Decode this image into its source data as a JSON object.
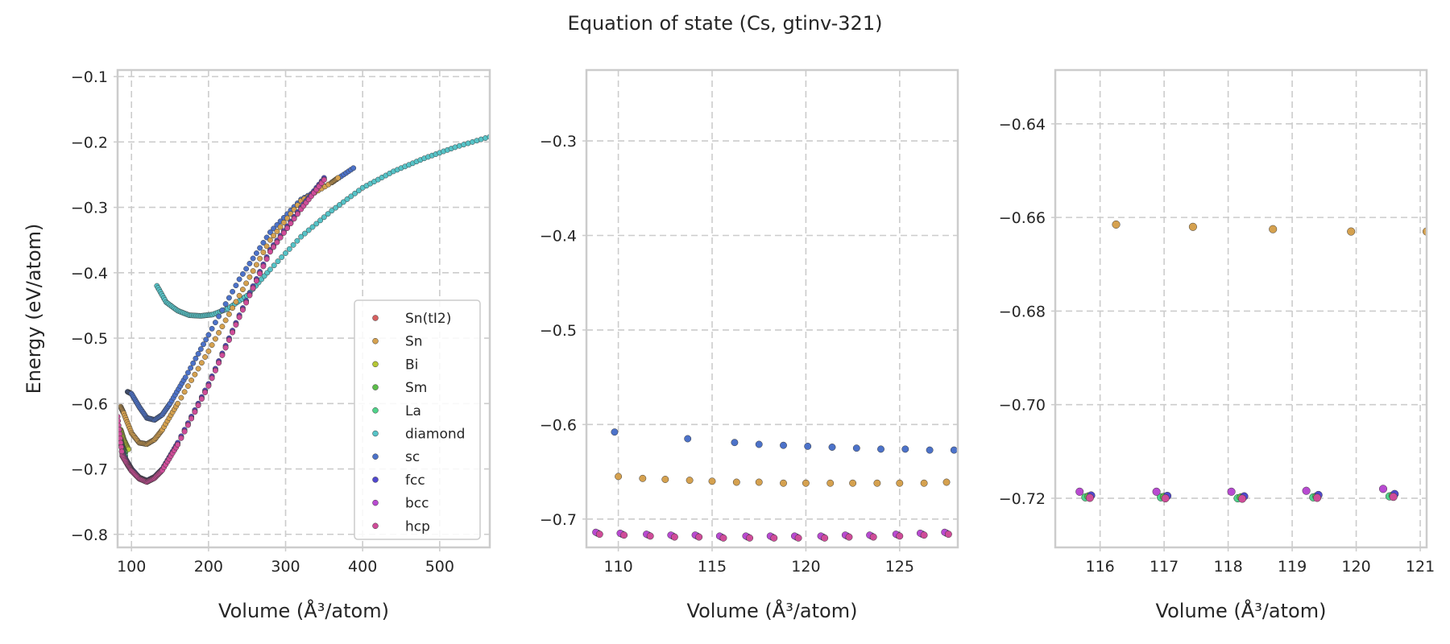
{
  "title": "Equation of state (Cs, gtinv-321)",
  "colors": {
    "Sn(tI2)": "#d65f5f",
    "Sn": "#d5a14f",
    "Bi": "#b5c735",
    "Sm": "#5cbd4a",
    "La": "#4fd38a",
    "diamond": "#56c3c7",
    "sc": "#4c72c9",
    "fcc": "#5148cf",
    "bcc": "#b84ad1",
    "hcp": "#cf4c99"
  },
  "chart_data": [
    {
      "type": "scatter",
      "xlabel": "Volume (Å³/atom)",
      "ylabel": "Energy (eV/atom)",
      "xlim": [
        82,
        565
      ],
      "ylim": [
        -0.82,
        -0.09
      ],
      "xticks": [
        100,
        200,
        300,
        400,
        500
      ],
      "xtick_labels": [
        "100",
        "200",
        "300",
        "400",
        "500"
      ],
      "yticks": [
        -0.8,
        -0.7,
        -0.6,
        -0.5,
        -0.4,
        -0.3,
        -0.2,
        -0.1
      ],
      "ytick_labels": [
        "−0.8",
        "−0.7",
        "−0.6",
        "−0.5",
        "−0.4",
        "−0.3",
        "−0.2",
        "−0.1"
      ],
      "grid": true,
      "legend": {
        "placement": "lower-right",
        "entries": [
          "Sn(tI2)",
          "Sn",
          "Bi",
          "Sm",
          "La",
          "diamond",
          "sc",
          "fcc",
          "bcc",
          "hcp"
        ]
      },
      "series": [
        {
          "name": "diamond",
          "x": [
            133,
            145,
            160,
            175,
            190,
            205,
            225,
            250,
            280,
            320,
            360,
            400,
            440,
            480,
            520,
            565
          ],
          "y": [
            -0.42,
            -0.445,
            -0.458,
            -0.465,
            -0.466,
            -0.464,
            -0.455,
            -0.435,
            -0.395,
            -0.345,
            -0.305,
            -0.27,
            -0.245,
            -0.225,
            -0.208,
            -0.192
          ]
        },
        {
          "name": "sc",
          "x": [
            95,
            100,
            110,
            120,
            130,
            140,
            150,
            170,
            200,
            240,
            280,
            320,
            360,
            388
          ],
          "y": [
            -0.582,
            -0.585,
            -0.605,
            -0.622,
            -0.625,
            -0.617,
            -0.6,
            -0.56,
            -0.495,
            -0.41,
            -0.338,
            -0.288,
            -0.262,
            -0.24
          ]
        },
        {
          "name": "Sn",
          "x": [
            86,
            90,
            100,
            110,
            120,
            130,
            140,
            160,
            200,
            240,
            280,
            320,
            360,
            368
          ],
          "y": [
            -0.605,
            -0.615,
            -0.645,
            -0.66,
            -0.662,
            -0.655,
            -0.64,
            -0.6,
            -0.52,
            -0.435,
            -0.35,
            -0.29,
            -0.262,
            -0.255
          ]
        },
        {
          "name": "Bi",
          "x": [
            86,
            90,
            96
          ],
          "y": [
            -0.64,
            -0.655,
            -0.67
          ]
        },
        {
          "name": "Sm",
          "x": [
            86,
            88,
            92
          ],
          "y": [
            -0.655,
            -0.665,
            -0.675
          ]
        },
        {
          "name": "La",
          "x": [
            86,
            88,
            92
          ],
          "y": [
            -0.66,
            -0.67,
            -0.68
          ]
        },
        {
          "name": "fcc",
          "x": [
            88,
            95,
            100,
            110,
            120,
            130,
            140,
            160,
            200,
            240,
            280,
            320,
            350
          ],
          "y": [
            -0.675,
            -0.69,
            -0.7,
            -0.713,
            -0.718,
            -0.712,
            -0.7,
            -0.66,
            -0.57,
            -0.465,
            -0.365,
            -0.3,
            -0.255
          ]
        },
        {
          "name": "bcc",
          "x": [
            88,
            95,
            100,
            110,
            120,
            130,
            140,
            160,
            200,
            240,
            280,
            320,
            350
          ],
          "y": [
            -0.677,
            -0.692,
            -0.702,
            -0.714,
            -0.719,
            -0.713,
            -0.701,
            -0.662,
            -0.572,
            -0.467,
            -0.367,
            -0.302,
            -0.257
          ]
        },
        {
          "name": "hcp",
          "x": [
            82,
            88,
            95,
            100,
            110,
            120,
            130,
            140,
            160,
            200,
            240,
            280,
            320,
            350
          ],
          "y": [
            -0.62,
            -0.68,
            -0.694,
            -0.703,
            -0.715,
            -0.72,
            -0.714,
            -0.702,
            -0.663,
            -0.573,
            -0.468,
            -0.368,
            -0.303,
            -0.258
          ]
        }
      ]
    },
    {
      "type": "scatter",
      "xlabel": "Volume (Å³/atom)",
      "xlim": [
        108.3,
        128.1
      ],
      "ylim": [
        -0.73,
        -0.225
      ],
      "xticks": [
        110,
        115,
        120,
        125
      ],
      "xtick_labels": [
        "110",
        "115",
        "120",
        "125"
      ],
      "yticks": [
        -0.7,
        -0.6,
        -0.5,
        -0.4,
        -0.3
      ],
      "ytick_labels": [
        "−0.7",
        "−0.6",
        "−0.5",
        "−0.4",
        "−0.3"
      ],
      "grid": true,
      "series": [
        {
          "name": "sc",
          "x": [
            109.8,
            113.7,
            116.2,
            117.5,
            118.8,
            120.1,
            121.4,
            122.7,
            124.0,
            125.3,
            126.6,
            127.9
          ],
          "y": [
            -0.608,
            -0.615,
            -0.619,
            -0.621,
            -0.622,
            -0.623,
            -0.624,
            -0.625,
            -0.626,
            -0.626,
            -0.627,
            -0.627
          ]
        },
        {
          "name": "Sn",
          "x": [
            110.0,
            111.3,
            112.5,
            113.8,
            115.0,
            116.3,
            117.5,
            118.8,
            120.0,
            121.3,
            122.5,
            123.8,
            125.0,
            126.3,
            127.5
          ],
          "y": [
            -0.655,
            -0.657,
            -0.658,
            -0.659,
            -0.66,
            -0.661,
            -0.661,
            -0.662,
            -0.662,
            -0.662,
            -0.662,
            -0.662,
            -0.662,
            -0.662,
            -0.661
          ]
        },
        {
          "name": "fcc",
          "x": [
            108.9,
            110.2,
            111.6,
            112.9,
            114.2,
            115.5,
            116.9,
            118.2,
            119.5,
            120.9,
            122.2,
            123.5,
            124.9,
            126.2,
            127.5
          ],
          "y": [
            -0.715,
            -0.716,
            -0.717,
            -0.718,
            -0.718,
            -0.719,
            -0.719,
            -0.719,
            -0.719,
            -0.719,
            -0.718,
            -0.718,
            -0.717,
            -0.716,
            -0.715
          ]
        },
        {
          "name": "bcc",
          "x": [
            108.8,
            110.1,
            111.5,
            112.8,
            114.1,
            115.4,
            116.8,
            118.1,
            119.4,
            120.8,
            122.1,
            123.4,
            124.8,
            126.1,
            127.4
          ],
          "y": [
            -0.714,
            -0.715,
            -0.716,
            -0.717,
            -0.717,
            -0.718,
            -0.718,
            -0.718,
            -0.718,
            -0.718,
            -0.717,
            -0.717,
            -0.716,
            -0.715,
            -0.714
          ]
        },
        {
          "name": "hcp",
          "x": [
            109.0,
            110.3,
            111.7,
            113.0,
            114.3,
            115.6,
            117.0,
            118.3,
            119.6,
            121.0,
            122.3,
            123.6,
            125.0,
            126.3,
            127.6
          ],
          "y": [
            -0.716,
            -0.717,
            -0.718,
            -0.719,
            -0.719,
            -0.72,
            -0.72,
            -0.72,
            -0.72,
            -0.72,
            -0.719,
            -0.719,
            -0.718,
            -0.717,
            -0.716
          ]
        }
      ]
    },
    {
      "type": "scatter",
      "xlabel": "Volume (Å³/atom)",
      "xlim": [
        115.3,
        121.1
      ],
      "ylim": [
        -0.7305,
        -0.6285
      ],
      "xticks": [
        116,
        117,
        118,
        119,
        120,
        121
      ],
      "xtick_labels": [
        "116",
        "117",
        "118",
        "119",
        "120",
        "121"
      ],
      "yticks": [
        -0.72,
        -0.7,
        -0.68,
        -0.66,
        -0.64
      ],
      "ytick_labels": [
        "−0.72",
        "−0.70",
        "−0.68",
        "−0.66",
        "−0.64"
      ],
      "grid": true,
      "series": [
        {
          "name": "Sn",
          "x": [
            116.25,
            117.45,
            118.7,
            119.92,
            121.1
          ],
          "y": [
            -0.6615,
            -0.662,
            -0.6625,
            -0.663,
            -0.663
          ]
        },
        {
          "name": "La",
          "x": [
            115.77,
            116.95,
            118.15,
            119.33,
            120.52
          ],
          "y": [
            -0.7198,
            -0.7198,
            -0.72,
            -0.7198,
            -0.7196
          ]
        },
        {
          "name": "Sm",
          "x": [
            115.82,
            117.0,
            118.2,
            119.38,
            120.57
          ],
          "y": [
            -0.7196,
            -0.7197,
            -0.7198,
            -0.7196,
            -0.7194
          ]
        },
        {
          "name": "fcc",
          "x": [
            115.86,
            117.05,
            118.25,
            119.41,
            120.6
          ],
          "y": [
            -0.7194,
            -0.7195,
            -0.7196,
            -0.7193,
            -0.7191
          ]
        },
        {
          "name": "hcp",
          "x": [
            115.84,
            117.02,
            118.22,
            119.39,
            120.58
          ],
          "y": [
            -0.7199,
            -0.72,
            -0.7201,
            -0.7199,
            -0.7197
          ]
        },
        {
          "name": "bcc",
          "x": [
            115.68,
            116.88,
            118.05,
            119.22,
            120.42
          ],
          "y": [
            -0.7186,
            -0.7186,
            -0.7186,
            -0.7184,
            -0.718
          ]
        }
      ]
    }
  ]
}
